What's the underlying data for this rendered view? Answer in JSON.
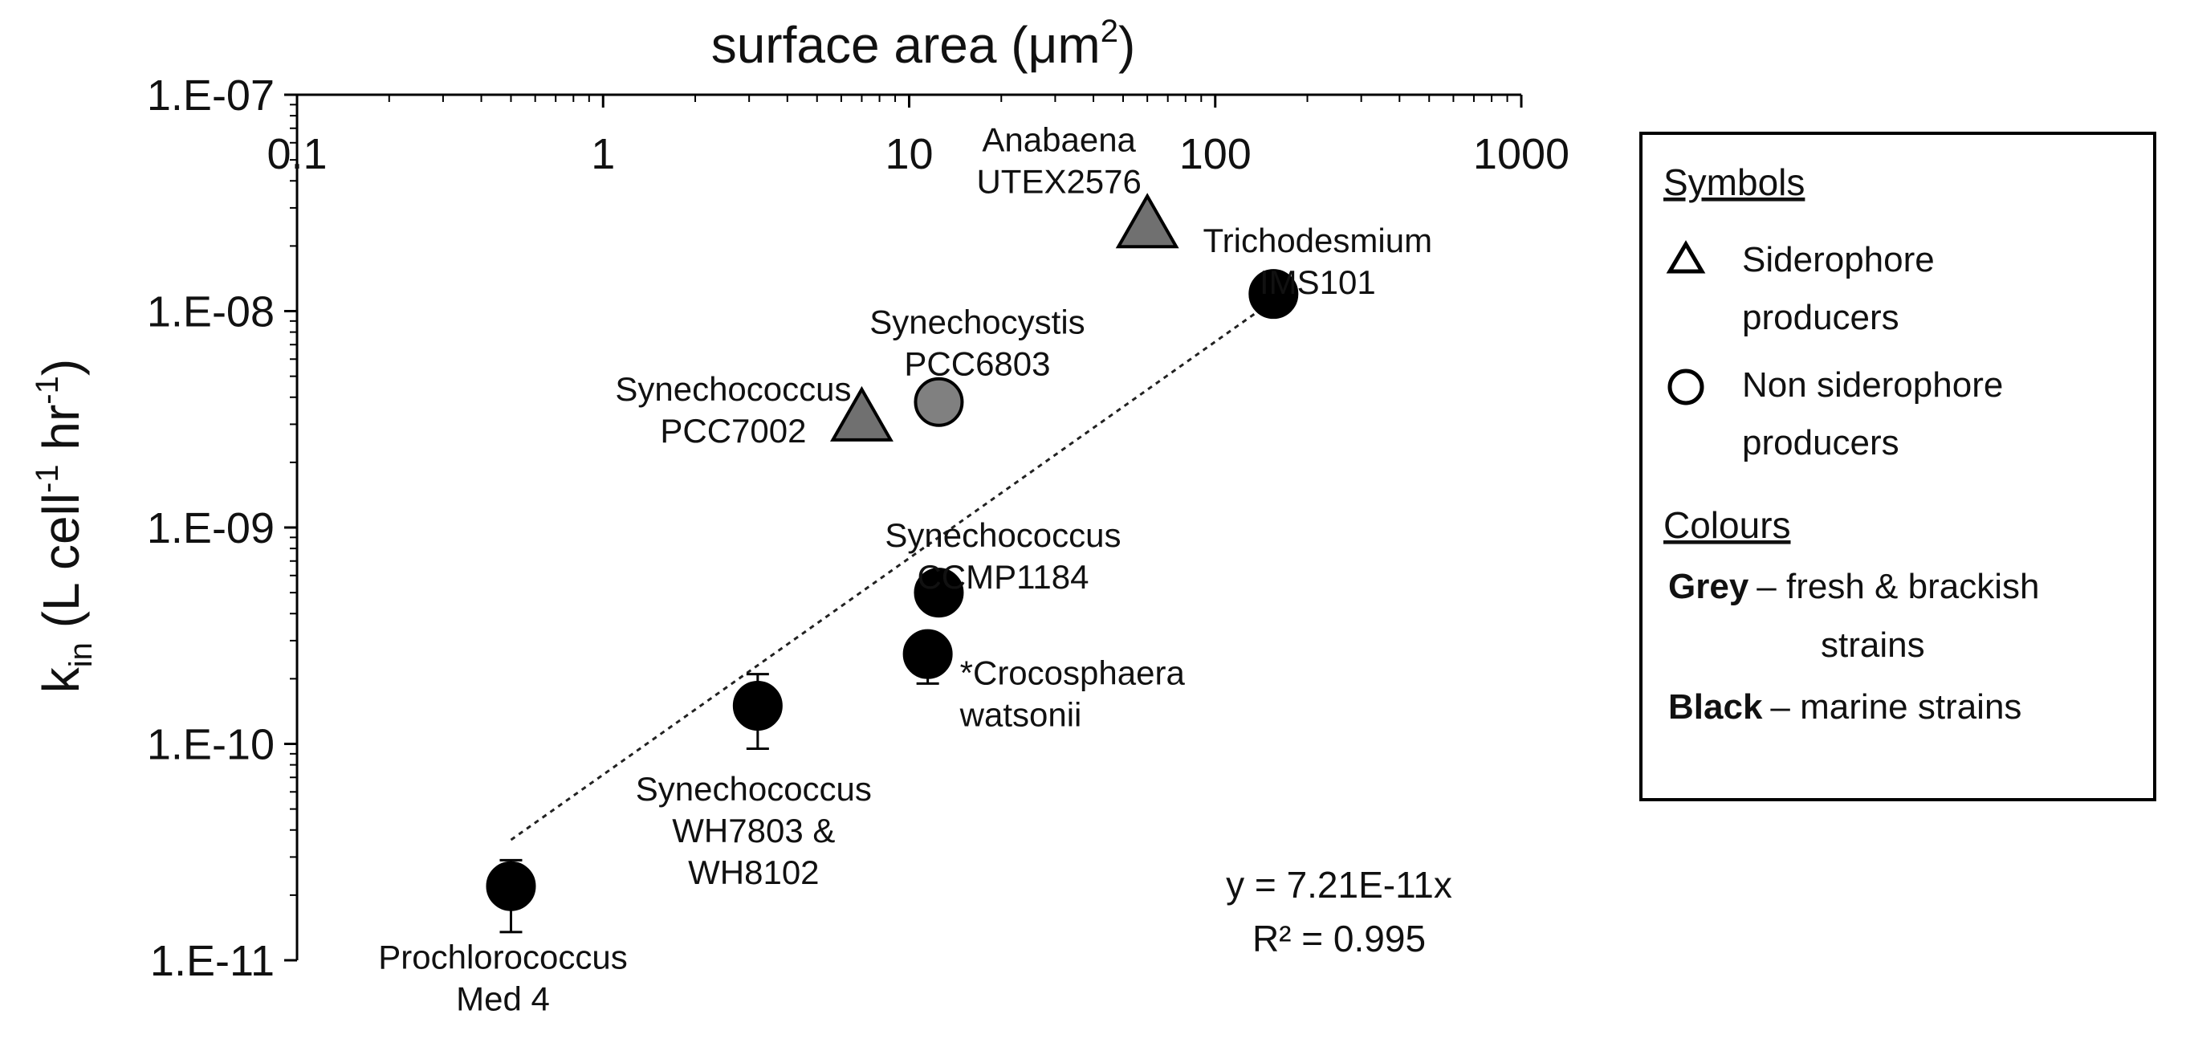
{
  "chart_data": {
    "type": "scatter",
    "xlabel_main": "surface area (μm",
    "xlabel_sup": "2",
    "xlabel_end": ")",
    "ylabel": {
      "base": "k",
      "sub": "in",
      "mid1": " (L cell",
      "sup1": "-1",
      "mid2": " hr",
      "sup2": "-1",
      "end": ")"
    },
    "x_scale": "log",
    "y_scale": "log",
    "xlim": [
      0.1,
      1000
    ],
    "ylim": [
      1e-11,
      1e-07
    ],
    "x_tick_values": [
      0.1,
      1,
      10,
      100,
      1000
    ],
    "x_tick_labels": [
      "0.1",
      "1",
      "10",
      "100",
      "1000"
    ],
    "y_tick_values": [
      1e-11,
      1e-10,
      1e-09,
      1e-08,
      1e-07
    ],
    "y_tick_labels": [
      "1.E-11",
      "1.E-10",
      "1.E-09",
      "1.E-08",
      "1.E-07"
    ],
    "grid": false,
    "points": [
      {
        "label": [
          "Anabaena",
          "UTEX2576"
        ],
        "x": 60,
        "y": 2.5e-08,
        "shape": "triangle",
        "color": "#707070"
      },
      {
        "label": [
          "Trichodesmium",
          "IMS101"
        ],
        "x": 155,
        "y": 1.2e-08,
        "shape": "circle",
        "color": "#000000"
      },
      {
        "label": [
          "Synechocystis",
          "PCC6803"
        ],
        "x": 12.5,
        "y": 3.8e-09,
        "shape": "circle",
        "color": "#808080"
      },
      {
        "label": [
          "Synechococcus",
          "PCC7002"
        ],
        "x": 7,
        "y": 3.2e-09,
        "shape": "triangle",
        "color": "#707070"
      },
      {
        "label": [
          "Synechococcus",
          "CCMP1184"
        ],
        "x": 12.5,
        "y": 5e-10,
        "shape": "circle",
        "color": "#000000"
      },
      {
        "label": [
          "*Crocosphaera",
          "watsonii"
        ],
        "x": 11.5,
        "y": 2.6e-10,
        "shape": "circle",
        "color": "#000000",
        "err_low": 1.9e-10
      },
      {
        "label": [
          "Synechococcus",
          "WH7803 &",
          "WH8102"
        ],
        "x": 3.2,
        "y": 1.5e-10,
        "shape": "circle",
        "color": "#000000",
        "err_low": 9.5e-11,
        "err_high": 2.1e-10
      },
      {
        "label": [
          "Prochlorococcus",
          "Med 4"
        ],
        "x": 0.5,
        "y": 2.2e-11,
        "shape": "circle",
        "color": "#000000",
        "err_low": 1.35e-11,
        "err_high": 2.9e-11
      }
    ],
    "trendline": {
      "x": [
        0.5,
        155
      ],
      "y": [
        3.6e-11,
        1.12e-08
      ]
    },
    "equation": [
      "y = 7.21E-11x",
      "R² = 0.995"
    ]
  },
  "legend": {
    "symbols_heading": "Symbols",
    "triangle_label": [
      "Siderophore",
      "producers"
    ],
    "circle_label": [
      "Non siderophore",
      "producers"
    ],
    "colours_heading": "Colours",
    "grey_key": "Grey",
    "grey_text": [
      "– fresh & brackish",
      "strains"
    ],
    "black_key": "Black",
    "black_text": "– marine  strains"
  }
}
